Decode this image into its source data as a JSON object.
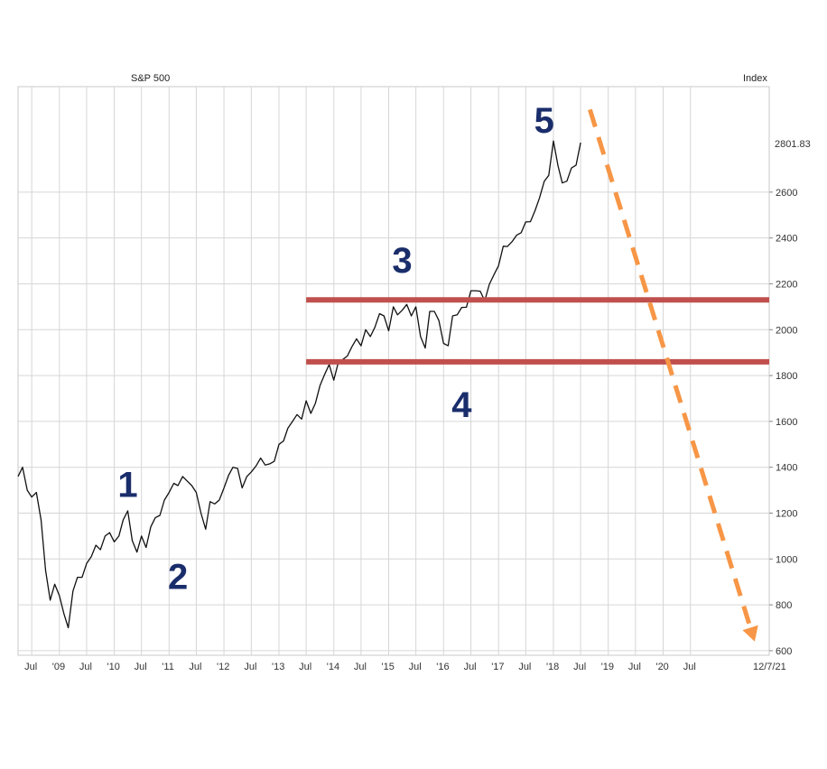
{
  "chart_data": {
    "type": "line",
    "title": "S&P 500",
    "ylabel": "Index",
    "last_value_label": "2801.83",
    "last_date_label": "12/7/21",
    "x_range": [
      "2008-04-01",
      "2021-12-07"
    ],
    "ylim": [
      580,
      3060
    ],
    "y_ticks": [
      600,
      800,
      1000,
      1200,
      1400,
      1600,
      1800,
      2000,
      2200,
      2400,
      2600
    ],
    "x_tick_labels": [
      "Jul",
      "'09",
      "Jul",
      "'10",
      "Jul",
      "'11",
      "Jul",
      "'12",
      "Jul",
      "'13",
      "Jul",
      "'14",
      "Jul",
      "'15",
      "Jul",
      "'16",
      "Jul",
      "'17",
      "Jul",
      "'18",
      "Jul",
      "'19",
      "Jul",
      "'20",
      "Jul"
    ],
    "x_tick_dates": [
      "2008-07-01",
      "2009-01-01",
      "2009-07-01",
      "2010-01-01",
      "2010-07-01",
      "2011-01-01",
      "2011-07-01",
      "2012-01-01",
      "2012-07-01",
      "2013-01-01",
      "2013-07-01",
      "2014-01-01",
      "2014-07-01",
      "2015-01-01",
      "2015-07-01",
      "2016-01-01",
      "2016-07-01",
      "2017-01-01",
      "2017-07-01",
      "2018-01-01",
      "2018-07-01",
      "2019-01-01",
      "2019-07-01",
      "2020-01-01",
      "2020-07-01"
    ],
    "grid": true,
    "series": [
      {
        "color": "#111111",
        "points": [
          [
            "2008-04-01",
            1360
          ],
          [
            "2008-05-01",
            1400
          ],
          [
            "2008-06-01",
            1300
          ],
          [
            "2008-07-01",
            1270
          ],
          [
            "2008-08-01",
            1290
          ],
          [
            "2008-09-01",
            1170
          ],
          [
            "2008-10-01",
            950
          ],
          [
            "2008-11-01",
            820
          ],
          [
            "2008-12-01",
            890
          ],
          [
            "2009-01-01",
            840
          ],
          [
            "2009-02-01",
            760
          ],
          [
            "2009-03-01",
            700
          ],
          [
            "2009-04-01",
            860
          ],
          [
            "2009-05-01",
            920
          ],
          [
            "2009-06-01",
            920
          ],
          [
            "2009-07-01",
            980
          ],
          [
            "2009-08-01",
            1010
          ],
          [
            "2009-09-01",
            1060
          ],
          [
            "2009-10-01",
            1040
          ],
          [
            "2009-11-01",
            1100
          ],
          [
            "2009-12-01",
            1115
          ],
          [
            "2010-01-01",
            1075
          ],
          [
            "2010-02-01",
            1100
          ],
          [
            "2010-03-01",
            1170
          ],
          [
            "2010-04-01",
            1210
          ],
          [
            "2010-05-01",
            1080
          ],
          [
            "2010-06-01",
            1030
          ],
          [
            "2010-07-01",
            1100
          ],
          [
            "2010-08-01",
            1050
          ],
          [
            "2010-09-01",
            1140
          ],
          [
            "2010-10-01",
            1180
          ],
          [
            "2010-11-01",
            1190
          ],
          [
            "2010-12-01",
            1257
          ],
          [
            "2011-01-01",
            1290
          ],
          [
            "2011-02-01",
            1330
          ],
          [
            "2011-03-01",
            1320
          ],
          [
            "2011-04-01",
            1360
          ],
          [
            "2011-05-01",
            1340
          ],
          [
            "2011-06-01",
            1320
          ],
          [
            "2011-07-01",
            1290
          ],
          [
            "2011-08-01",
            1200
          ],
          [
            "2011-09-01",
            1130
          ],
          [
            "2011-10-01",
            1250
          ],
          [
            "2011-11-01",
            1240
          ],
          [
            "2011-12-01",
            1257
          ],
          [
            "2012-01-01",
            1310
          ],
          [
            "2012-02-01",
            1365
          ],
          [
            "2012-03-01",
            1400
          ],
          [
            "2012-04-01",
            1395
          ],
          [
            "2012-05-01",
            1310
          ],
          [
            "2012-06-01",
            1360
          ],
          [
            "2012-07-01",
            1380
          ],
          [
            "2012-08-01",
            1405
          ],
          [
            "2012-09-01",
            1440
          ],
          [
            "2012-10-01",
            1410
          ],
          [
            "2012-11-01",
            1415
          ],
          [
            "2012-12-01",
            1426
          ],
          [
            "2013-01-01",
            1500
          ],
          [
            "2013-02-01",
            1515
          ],
          [
            "2013-03-01",
            1570
          ],
          [
            "2013-04-01",
            1600
          ],
          [
            "2013-05-01",
            1630
          ],
          [
            "2013-06-01",
            1610
          ],
          [
            "2013-07-01",
            1690
          ],
          [
            "2013-08-01",
            1635
          ],
          [
            "2013-09-01",
            1680
          ],
          [
            "2013-10-01",
            1756
          ],
          [
            "2013-11-01",
            1805
          ],
          [
            "2013-12-01",
            1848
          ],
          [
            "2014-01-01",
            1780
          ],
          [
            "2014-02-01",
            1860
          ],
          [
            "2014-03-01",
            1870
          ],
          [
            "2014-04-01",
            1885
          ],
          [
            "2014-05-01",
            1925
          ],
          [
            "2014-06-01",
            1960
          ],
          [
            "2014-07-01",
            1930
          ],
          [
            "2014-08-01",
            2000
          ],
          [
            "2014-09-01",
            1970
          ],
          [
            "2014-10-01",
            2010
          ],
          [
            "2014-11-01",
            2070
          ],
          [
            "2014-12-01",
            2060
          ],
          [
            "2015-01-01",
            1995
          ],
          [
            "2015-02-01",
            2100
          ],
          [
            "2015-03-01",
            2065
          ],
          [
            "2015-04-01",
            2085
          ],
          [
            "2015-05-01",
            2110
          ],
          [
            "2015-06-01",
            2060
          ],
          [
            "2015-07-01",
            2100
          ],
          [
            "2015-08-01",
            1970
          ],
          [
            "2015-09-01",
            1920
          ],
          [
            "2015-10-01",
            2080
          ],
          [
            "2015-11-01",
            2080
          ],
          [
            "2015-12-01",
            2040
          ],
          [
            "2016-01-01",
            1940
          ],
          [
            "2016-02-01",
            1930
          ],
          [
            "2016-03-01",
            2060
          ],
          [
            "2016-04-01",
            2065
          ],
          [
            "2016-05-01",
            2097
          ],
          [
            "2016-06-01",
            2098
          ],
          [
            "2016-07-01",
            2170
          ],
          [
            "2016-08-01",
            2170
          ],
          [
            "2016-09-01",
            2168
          ],
          [
            "2016-10-01",
            2126
          ],
          [
            "2016-11-01",
            2198
          ],
          [
            "2016-12-01",
            2239
          ],
          [
            "2017-01-01",
            2279
          ],
          [
            "2017-02-01",
            2364
          ],
          [
            "2017-03-01",
            2363
          ],
          [
            "2017-04-01",
            2384
          ],
          [
            "2017-05-01",
            2412
          ],
          [
            "2017-06-01",
            2423
          ],
          [
            "2017-07-01",
            2470
          ],
          [
            "2017-08-01",
            2471
          ],
          [
            "2017-09-01",
            2519
          ],
          [
            "2017-10-01",
            2575
          ],
          [
            "2017-11-01",
            2647
          ],
          [
            "2017-12-01",
            2673
          ],
          [
            "2018-01-01",
            2823
          ],
          [
            "2018-02-01",
            2714
          ],
          [
            "2018-03-01",
            2640
          ],
          [
            "2018-04-01",
            2648
          ],
          [
            "2018-05-01",
            2705
          ],
          [
            "2018-06-01",
            2718
          ],
          [
            "2018-07-01",
            2816
          ]
        ]
      }
    ],
    "horizontal_lines": [
      {
        "y": 2130,
        "from": "2013-07-01",
        "color": "#c0504d"
      },
      {
        "y": 1860,
        "from": "2013-07-01",
        "color": "#c0504d"
      }
    ],
    "projection_arrow": {
      "from": [
        "2018-09-01",
        2960
      ],
      "to": [
        "2021-09-01",
        640
      ],
      "color": "#f79646"
    },
    "annotations": [
      {
        "text": "1",
        "x": "2010-04-01",
        "y": 1270
      },
      {
        "text": "2",
        "x": "2011-03-01",
        "y": 870
      },
      {
        "text": "3",
        "x": "2015-04-01",
        "y": 2250
      },
      {
        "text": "4",
        "x": "2016-05-01",
        "y": 1620
      },
      {
        "text": "5",
        "x": "2017-11-01",
        "y": 2860
      }
    ]
  }
}
